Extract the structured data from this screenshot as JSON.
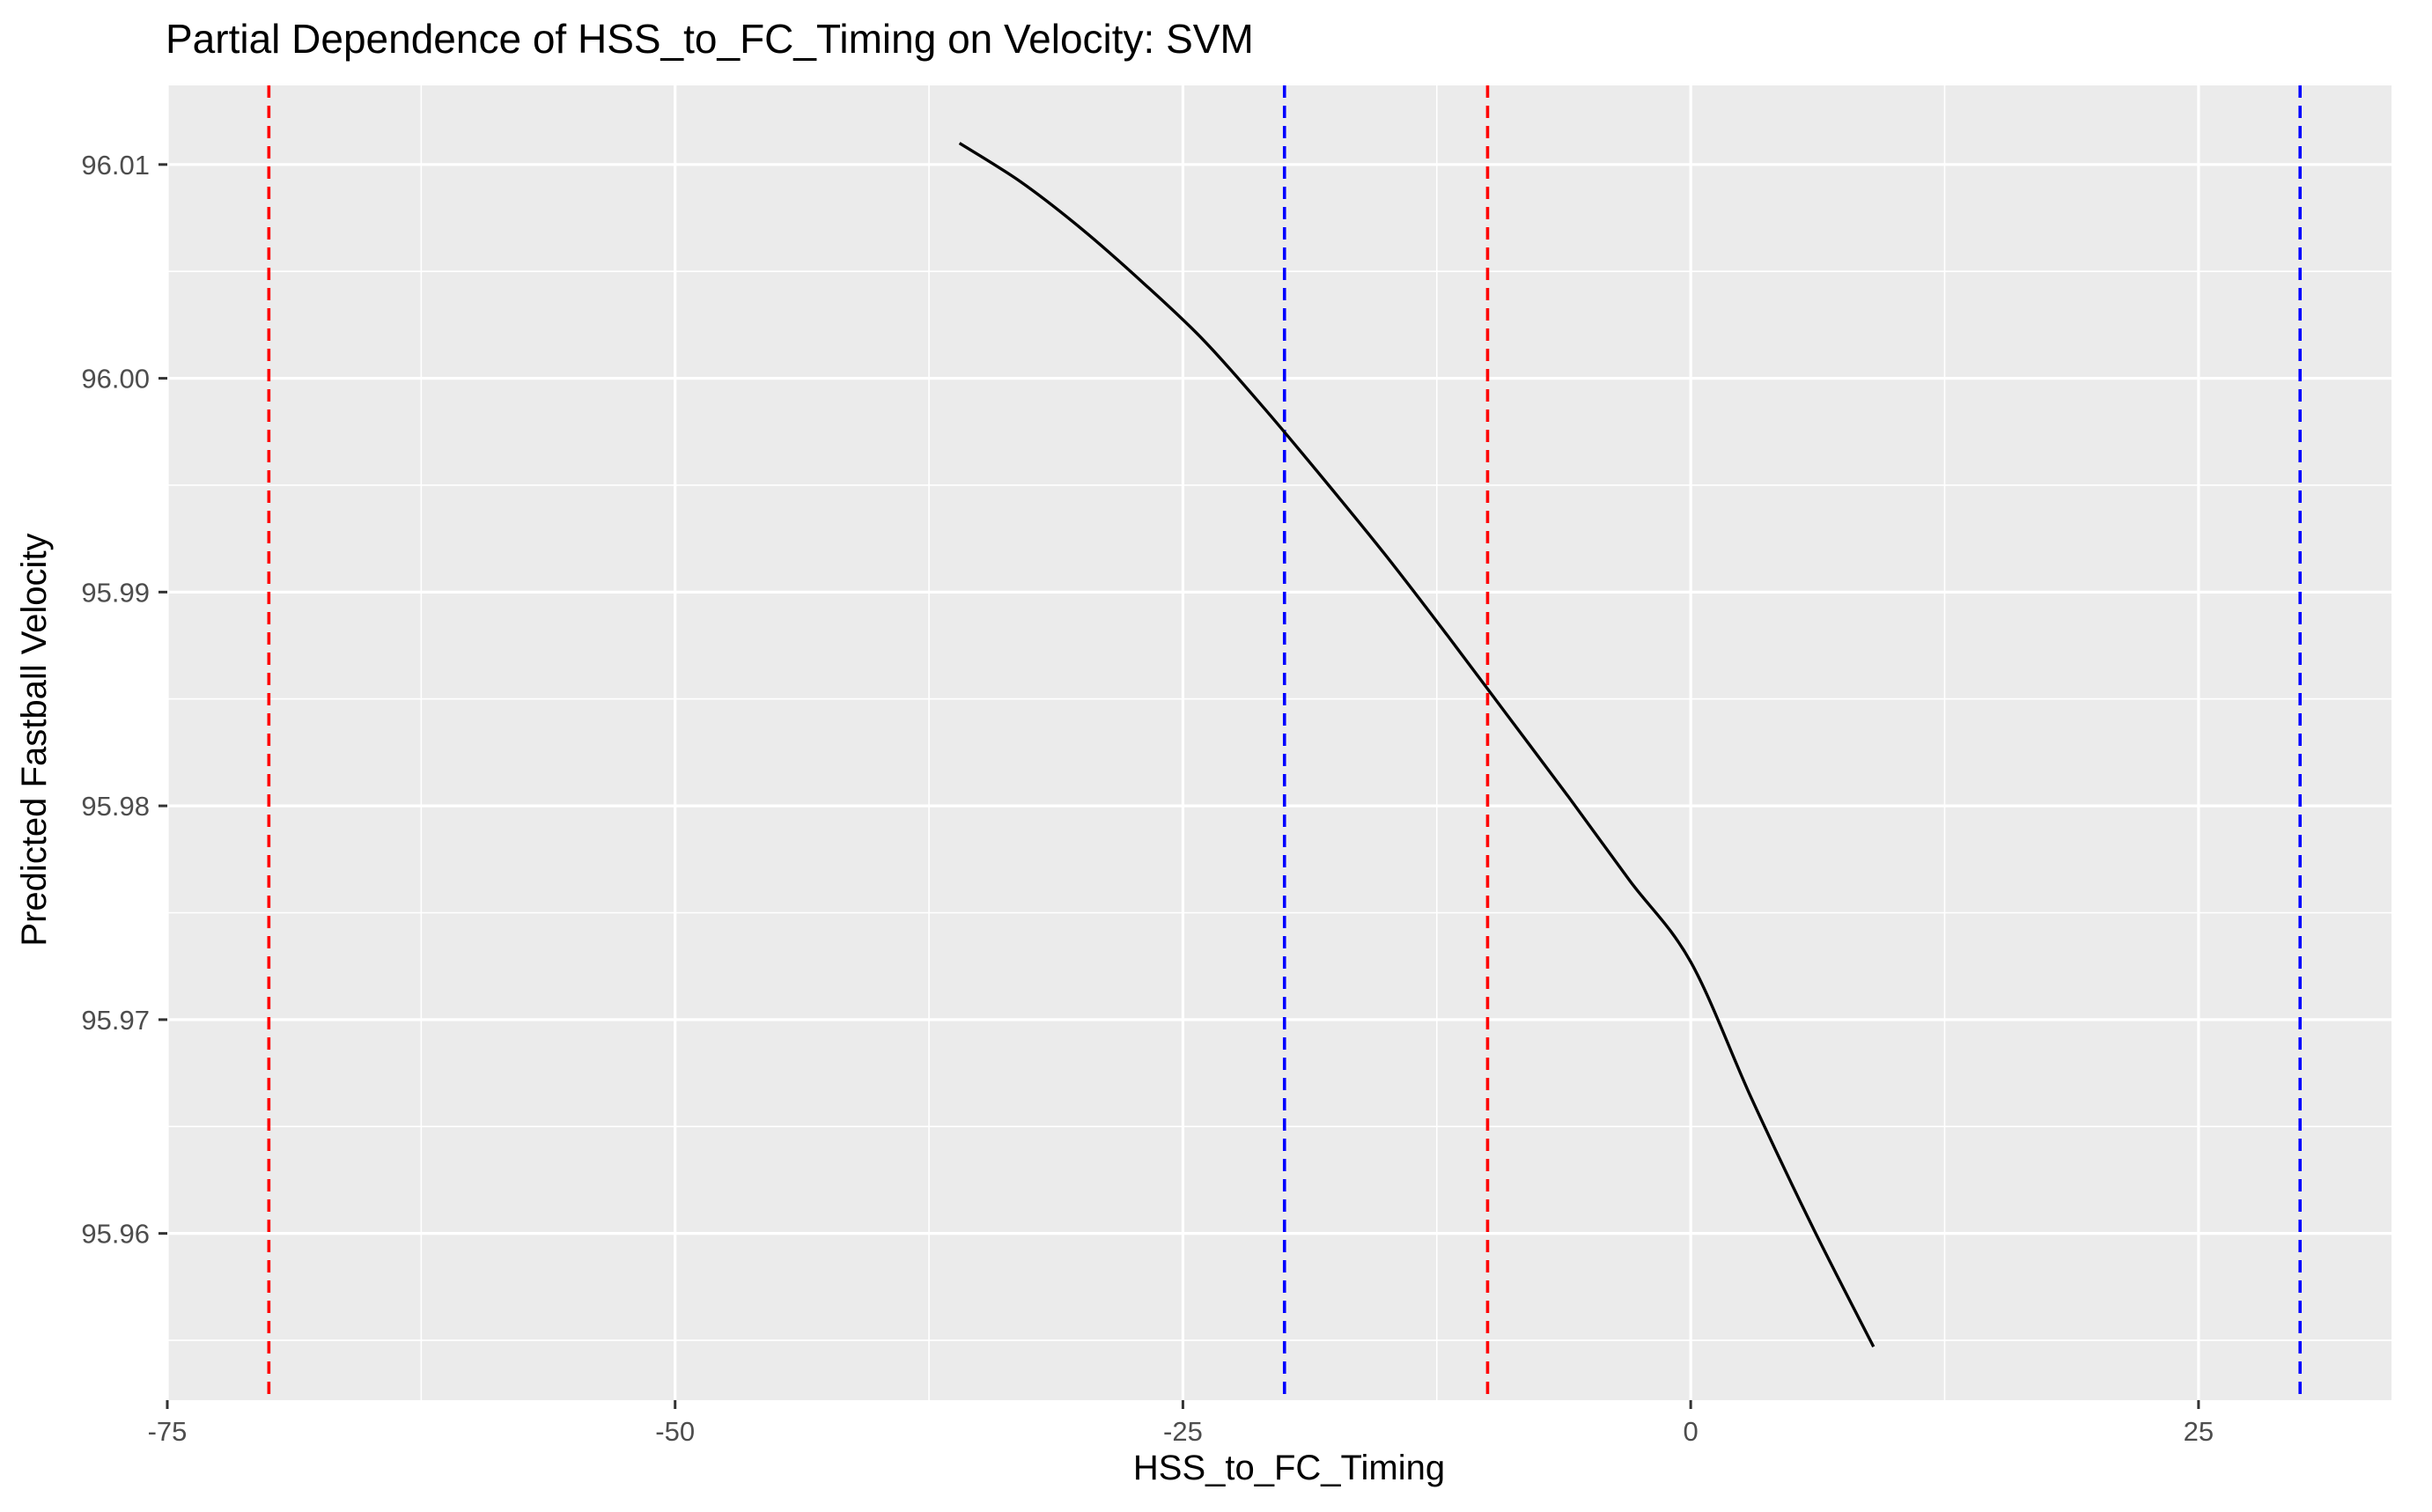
{
  "chart_data": {
    "type": "line",
    "title": "Partial Dependence of HSS_to_FC_Timing on Velocity: SVM",
    "xlabel": "HSS_to_FC_Timing",
    "ylabel": "Predicted Fastball Velocity",
    "xlim": [
      -75,
      34.5
    ],
    "ylim": [
      95.9522,
      96.0137
    ],
    "x_ticks": [
      -75,
      -50,
      -25,
      0,
      25
    ],
    "x_tick_labels": [
      "-75",
      "-50",
      "-25",
      "0",
      "25"
    ],
    "y_ticks": [
      95.96,
      95.97,
      95.98,
      95.99,
      96.0,
      96.01
    ],
    "y_tick_labels": [
      "95.96",
      "95.97",
      "95.98",
      "95.99",
      "96.00",
      "96.01"
    ],
    "grid": true,
    "panel_background": "#ebebeb",
    "line_color": "#000000",
    "series": [
      {
        "x": [
          -36,
          -33,
          -30,
          -27,
          -24,
          -21,
          -18,
          -15,
          -12,
          -9,
          -6,
          -3,
          0,
          3,
          6,
          9
        ],
        "y": [
          96.011,
          96.0092,
          96.007,
          96.0045,
          96.0018,
          95.9986,
          95.9952,
          95.9917,
          95.988,
          95.9842,
          95.9804,
          95.9765,
          95.9727,
          95.9663,
          95.9603,
          95.9547
        ]
      }
    ],
    "reference_lines": [
      {
        "x": -70,
        "color": "#ff0000",
        "style": "dashed"
      },
      {
        "x": -10,
        "color": "#ff0000",
        "style": "dashed"
      },
      {
        "x": -20,
        "color": "#0000ff",
        "style": "dashed"
      },
      {
        "x": 30,
        "color": "#0000ff",
        "style": "dashed"
      }
    ]
  }
}
